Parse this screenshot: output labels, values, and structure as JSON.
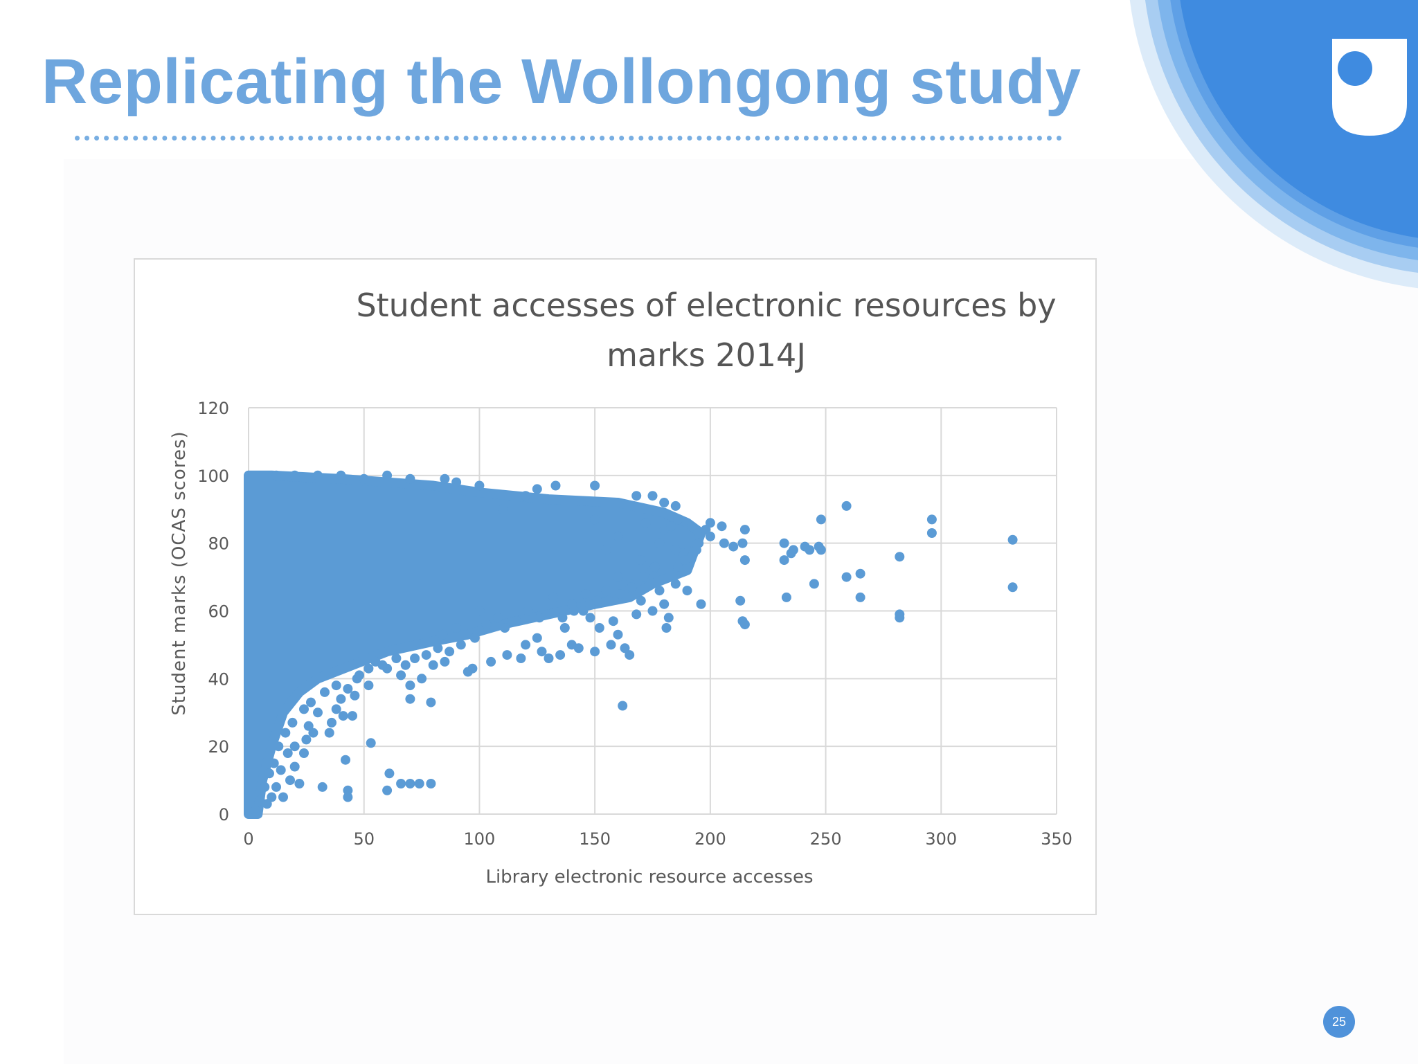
{
  "slide": {
    "title": "Replicating the Wollongong study",
    "page_number": "25",
    "logo_icon": "open-university-shield-icon",
    "colors": {
      "title": "#6ea6de",
      "logo": "#3f8be0",
      "marker": "#5b9bd5",
      "page_badge": "#4f92da"
    }
  },
  "chart_data": {
    "type": "scatter",
    "title_lines": [
      "Student accesses of electronic resources by",
      "marks 2014J"
    ],
    "xlabel": "Library electronic resource accesses",
    "ylabel": "Student marks (OCAS scores)",
    "xlim": [
      0,
      350
    ],
    "ylim": [
      0,
      120
    ],
    "xticks": [
      "0",
      "50",
      "100",
      "150",
      "200",
      "250",
      "300",
      "350"
    ],
    "yticks": [
      "0",
      "20",
      "40",
      "60",
      "80",
      "100",
      "120"
    ],
    "grid": true,
    "legend": "none",
    "marker_color": "#5b9bd5",
    "dense_region_outline": [
      [
        0,
        0
      ],
      [
        0,
        100
      ],
      [
        10,
        100
      ],
      [
        40,
        99
      ],
      [
        60,
        98
      ],
      [
        80,
        97
      ],
      [
        100,
        95
      ],
      [
        130,
        93
      ],
      [
        160,
        92
      ],
      [
        180,
        89
      ],
      [
        190,
        86
      ],
      [
        196,
        83
      ],
      [
        190,
        72
      ],
      [
        175,
        68
      ],
      [
        165,
        64
      ],
      [
        150,
        62
      ],
      [
        130,
        59
      ],
      [
        110,
        56
      ],
      [
        95,
        53
      ],
      [
        80,
        51
      ],
      [
        60,
        48
      ],
      [
        45,
        44
      ],
      [
        30,
        40
      ],
      [
        22,
        36
      ],
      [
        15,
        30
      ],
      [
        10,
        20
      ],
      [
        6,
        10
      ],
      [
        4,
        0
      ]
    ],
    "points": [
      [
        162,
        32
      ],
      [
        160,
        53
      ],
      [
        163,
        49
      ],
      [
        165,
        47
      ],
      [
        157,
        50
      ],
      [
        150,
        48
      ],
      [
        140,
        50
      ],
      [
        135,
        47
      ],
      [
        143,
        49
      ],
      [
        130,
        46
      ],
      [
        118,
        46
      ],
      [
        112,
        47
      ],
      [
        105,
        45
      ],
      [
        97,
        43
      ],
      [
        95,
        42
      ],
      [
        85,
        45
      ],
      [
        80,
        44
      ],
      [
        75,
        40
      ],
      [
        70,
        38
      ],
      [
        66,
        41
      ],
      [
        60,
        43
      ],
      [
        55,
        45
      ],
      [
        48,
        41
      ],
      [
        43,
        37
      ],
      [
        40,
        34
      ],
      [
        41,
        29
      ],
      [
        45,
        29
      ],
      [
        36,
        27
      ],
      [
        30,
        30
      ],
      [
        28,
        24
      ],
      [
        25,
        22
      ],
      [
        20,
        20
      ],
      [
        17,
        18
      ],
      [
        14,
        13
      ],
      [
        12,
        8
      ],
      [
        10,
        5
      ],
      [
        8,
        3
      ],
      [
        15,
        5
      ],
      [
        22,
        9
      ],
      [
        32,
        8
      ],
      [
        42,
        16
      ],
      [
        43,
        7
      ],
      [
        43,
        5
      ],
      [
        53,
        21
      ],
      [
        61,
        12
      ],
      [
        60,
        7
      ],
      [
        66,
        9
      ],
      [
        70,
        9
      ],
      [
        74,
        9
      ],
      [
        79,
        9
      ],
      [
        70,
        34
      ],
      [
        79,
        33
      ],
      [
        120,
        50
      ],
      [
        125,
        52
      ],
      [
        127,
        48
      ],
      [
        137,
        55
      ],
      [
        145,
        60
      ],
      [
        148,
        58
      ],
      [
        152,
        55
      ],
      [
        158,
        57
      ],
      [
        168,
        59
      ],
      [
        170,
        63
      ],
      [
        175,
        60
      ],
      [
        180,
        62
      ],
      [
        182,
        58
      ],
      [
        181,
        55
      ],
      [
        178,
        66
      ],
      [
        185,
        68
      ],
      [
        190,
        66
      ],
      [
        196,
        62
      ],
      [
        188,
        77
      ],
      [
        195,
        80
      ],
      [
        200,
        82
      ],
      [
        205,
        85
      ],
      [
        210,
        79
      ],
      [
        215,
        84
      ],
      [
        215,
        75
      ],
      [
        214,
        80
      ],
      [
        213,
        63
      ],
      [
        214,
        57
      ],
      [
        215,
        56
      ],
      [
        232,
        75
      ],
      [
        232,
        80
      ],
      [
        235,
        77
      ],
      [
        236,
        78
      ],
      [
        241,
        79
      ],
      [
        243,
        78
      ],
      [
        247,
        79
      ],
      [
        248,
        78
      ],
      [
        233,
        64
      ],
      [
        245,
        68
      ],
      [
        248,
        87
      ],
      [
        259,
        91
      ],
      [
        259,
        70
      ],
      [
        265,
        71
      ],
      [
        265,
        64
      ],
      [
        282,
        76
      ],
      [
        282,
        59
      ],
      [
        282,
        58
      ],
      [
        296,
        87
      ],
      [
        296,
        83
      ],
      [
        331,
        81
      ],
      [
        331,
        67
      ],
      [
        110,
        90
      ],
      [
        120,
        94
      ],
      [
        125,
        96
      ],
      [
        133,
        97
      ],
      [
        150,
        97
      ],
      [
        168,
        94
      ],
      [
        175,
        94
      ],
      [
        180,
        92
      ],
      [
        185,
        91
      ],
      [
        172,
        86
      ],
      [
        180,
        84
      ],
      [
        178,
        80
      ],
      [
        185,
        78
      ],
      [
        170,
        75
      ],
      [
        175,
        72
      ],
      [
        160,
        70
      ],
      [
        155,
        66
      ],
      [
        165,
        68
      ],
      [
        140,
        62
      ],
      [
        132,
        64
      ],
      [
        100,
        60
      ],
      [
        108,
        58
      ],
      [
        90,
        55
      ],
      [
        84,
        53
      ],
      [
        150,
        87
      ],
      [
        160,
        82
      ],
      [
        155,
        78
      ],
      [
        200,
        86
      ],
      [
        198,
        84
      ],
      [
        192,
        85
      ],
      [
        186,
        87
      ],
      [
        183,
        85
      ],
      [
        206,
        80
      ],
      [
        194,
        78
      ],
      [
        189,
        75
      ],
      [
        186,
        73
      ],
      [
        176,
        73
      ],
      [
        171,
        70
      ],
      [
        166,
        67
      ],
      [
        161,
        65
      ],
      [
        156,
        63
      ],
      [
        151,
        63
      ],
      [
        146,
        65
      ],
      [
        141,
        60
      ],
      [
        136,
        58
      ],
      [
        126,
        58
      ],
      [
        121,
        60
      ],
      [
        116,
        57
      ],
      [
        111,
        55
      ],
      [
        103,
        56
      ],
      [
        98,
        52
      ],
      [
        92,
        50
      ],
      [
        87,
        48
      ],
      [
        82,
        49
      ],
      [
        77,
        47
      ],
      [
        72,
        46
      ],
      [
        68,
        44
      ],
      [
        64,
        46
      ],
      [
        58,
        44
      ],
      [
        52,
        43
      ],
      [
        47,
        40
      ],
      [
        38,
        38
      ],
      [
        33,
        36
      ],
      [
        27,
        33
      ],
      [
        24,
        31
      ],
      [
        19,
        27
      ],
      [
        16,
        24
      ],
      [
        13,
        20
      ],
      [
        11,
        15
      ],
      [
        9,
        12
      ],
      [
        7,
        8
      ],
      [
        5,
        4
      ],
      [
        3,
        1
      ],
      [
        18,
        10
      ],
      [
        20,
        14
      ],
      [
        24,
        18
      ],
      [
        26,
        26
      ],
      [
        35,
        24
      ],
      [
        38,
        31
      ],
      [
        46,
        35
      ],
      [
        52,
        38
      ],
      [
        100,
        97
      ],
      [
        90,
        98
      ],
      [
        85,
        99
      ],
      [
        70,
        99
      ],
      [
        60,
        100
      ],
      [
        50,
        99
      ],
      [
        40,
        100
      ],
      [
        30,
        100
      ],
      [
        20,
        100
      ],
      [
        12,
        100
      ]
    ]
  }
}
